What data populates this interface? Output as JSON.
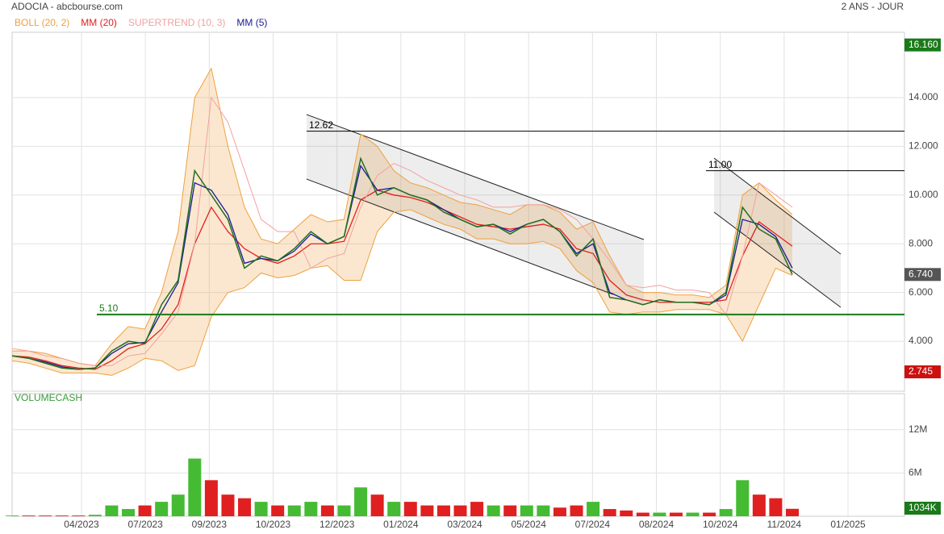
{
  "chart_data": [
    {
      "type": "line",
      "title": "ADOCIA - abcbourse.com",
      "subtitle": "2 ANS - JOUR",
      "values": [
        3.4,
        3.3,
        3.1,
        2.9,
        2.85,
        2.9,
        3.6,
        4.0,
        3.9,
        5.5,
        6.5,
        11.0,
        10.0,
        9.0,
        7.0,
        7.5,
        7.3,
        7.8,
        8.5,
        8.0,
        8.3,
        11.5,
        10.0,
        10.3,
        10.0,
        9.8,
        9.3,
        9.0,
        8.7,
        8.8,
        8.4,
        8.8,
        9.0,
        8.5,
        7.5,
        8.2,
        5.8,
        5.7,
        5.5,
        5.7,
        5.6,
        5.6,
        5.5,
        6.0,
        9.5,
        8.6,
        8.2,
        6.74
      ],
      "color": "#1f6f1f",
      "series": [
        {
          "name": "BOLL (20, 2)",
          "color": "#f0a040",
          "values": [
            3.6,
            3.6,
            3.5,
            3.3,
            3.1,
            3.0,
            3.9,
            4.6,
            4.5,
            6.0,
            8.5,
            14.0,
            15.2,
            12.0,
            9.5,
            8.2,
            8.0,
            8.6,
            9.2,
            8.9,
            9.0,
            12.5,
            12.0,
            11.0,
            10.5,
            10.3,
            10.0,
            9.7,
            9.6,
            9.4,
            9.2,
            9.6,
            9.6,
            9.3,
            8.6,
            8.9,
            7.5,
            6.3,
            6.0,
            6.0,
            5.9,
            5.9,
            5.8,
            6.3,
            10.0,
            10.5,
            9.8,
            9.2
          ],
          "lower": [
            3.2,
            3.1,
            2.9,
            2.7,
            2.7,
            2.7,
            2.6,
            2.9,
            3.3,
            3.2,
            2.8,
            3.0,
            5.0,
            6.0,
            6.2,
            6.8,
            6.6,
            6.7,
            7.0,
            7.1,
            6.5,
            6.5,
            8.5,
            9.3,
            9.4,
            9.1,
            8.8,
            8.6,
            8.2,
            8.2,
            8.0,
            8.0,
            8.1,
            7.8,
            6.9,
            6.4,
            5.2,
            5.1,
            5.2,
            5.2,
            5.3,
            5.3,
            5.3,
            5.1,
            4.0,
            5.5,
            7.0,
            6.7
          ]
        },
        {
          "name": "MM (20)",
          "color": "#e02020",
          "values": [
            3.4,
            3.35,
            3.2,
            3.0,
            2.9,
            2.85,
            3.2,
            3.7,
            3.9,
            4.5,
            5.5,
            8.0,
            9.5,
            8.5,
            7.8,
            7.4,
            7.2,
            7.5,
            8.0,
            8.0,
            8.1,
            9.8,
            10.2,
            10.0,
            9.9,
            9.7,
            9.4,
            9.1,
            8.8,
            8.7,
            8.6,
            8.7,
            8.8,
            8.6,
            7.8,
            7.6,
            6.5,
            5.9,
            5.7,
            5.6,
            5.6,
            5.6,
            5.6,
            5.7,
            7.5,
            8.9,
            8.4,
            7.9
          ]
        },
        {
          "name": "SUPERTREND (10, 3)",
          "color": "#f4a0a0",
          "values": [
            3.7,
            3.6,
            3.4,
            3.3,
            3.1,
            3.0,
            3.0,
            3.4,
            3.5,
            4.3,
            5.2,
            8.0,
            14.0,
            13.0,
            11.0,
            9.0,
            8.5,
            8.5,
            7.0,
            7.4,
            7.6,
            9.5,
            10.8,
            11.3,
            11.0,
            10.6,
            10.3,
            10.0,
            9.8,
            9.5,
            9.5,
            9.6,
            9.6,
            9.4,
            9.0,
            8.2,
            7.3,
            6.3,
            6.2,
            6.3,
            6.1,
            6.1,
            6.0,
            5.1,
            7.5,
            10.5,
            10.0,
            9.5
          ]
        },
        {
          "name": "MM (5)",
          "color": "#1a1a9a",
          "values": [
            3.4,
            3.3,
            3.15,
            2.95,
            2.85,
            2.9,
            3.5,
            3.9,
            3.95,
            5.2,
            6.4,
            10.5,
            10.2,
            9.2,
            7.2,
            7.4,
            7.3,
            7.7,
            8.4,
            8.0,
            8.3,
            11.2,
            10.2,
            10.3,
            10.0,
            9.8,
            9.4,
            9.0,
            8.7,
            8.8,
            8.5,
            8.8,
            9.0,
            8.5,
            7.6,
            8.0,
            6.0,
            5.7,
            5.5,
            5.7,
            5.6,
            5.6,
            5.5,
            5.9,
            9.0,
            8.8,
            8.3,
            7.0
          ]
        }
      ],
      "ylim": [
        1.95,
        16.68
      ],
      "yticks": [
        {
          "value": 4,
          "label": "4.000"
        },
        {
          "value": 6,
          "label": "6.000"
        },
        {
          "value": 8,
          "label": "8.000"
        },
        {
          "value": 10,
          "label": "10.000"
        },
        {
          "value": 12,
          "label": "12.000"
        },
        {
          "value": 14,
          "label": "14.000"
        }
      ],
      "xticks": [
        "04/2023",
        "07/2023",
        "09/2023",
        "10/2023",
        "12/2023",
        "01/2024",
        "03/2024",
        "05/2024",
        "07/2024",
        "08/2024",
        "10/2024",
        "11/2024",
        "01/2025"
      ],
      "levels": [
        {
          "value": 12.62,
          "label": "12.62",
          "color": "#000000"
        },
        {
          "value": 11,
          "label": "11.00",
          "color": "#000000"
        },
        {
          "value": 5.1,
          "label": "5.10",
          "color": "#1a7a1a"
        }
      ],
      "price_tags": [
        {
          "value": 16.16,
          "label": "16.160",
          "color": "#1a7a1a"
        },
        {
          "value": 6.74,
          "label": "6.740",
          "color": "#555555"
        },
        {
          "value": 2.745,
          "label": "2.745",
          "color": "#cc1111"
        }
      ],
      "grid": true
    },
    {
      "type": "bar",
      "title": "VOLUMECASH",
      "values": [
        100000,
        100000,
        100000,
        100000,
        100000,
        200000,
        1500000,
        1000000,
        1500000,
        2000000,
        3000000,
        8000000,
        5000000,
        3000000,
        2500000,
        2000000,
        1500000,
        1500000,
        2000000,
        1500000,
        1500000,
        4000000,
        3000000,
        2000000,
        2000000,
        1500000,
        1500000,
        1500000,
        2000000,
        1500000,
        1500000,
        1500000,
        1500000,
        1200000,
        1500000,
        2000000,
        1000000,
        800000,
        500000,
        500000,
        500000,
        500000,
        500000,
        1000000,
        5000000,
        3000000,
        2500000,
        1034000
      ],
      "up_color": "#44bb33",
      "down_color": "#e02020",
      "ylim": [
        0,
        17000000
      ],
      "yticks": [
        {
          "value": 6000000,
          "label": "6M"
        },
        {
          "value": 12000000,
          "label": "12M"
        }
      ],
      "price_tags": [
        {
          "value": 1034000,
          "label": "1034K",
          "color": "#1a7a1a"
        }
      ],
      "grid": true
    }
  ]
}
